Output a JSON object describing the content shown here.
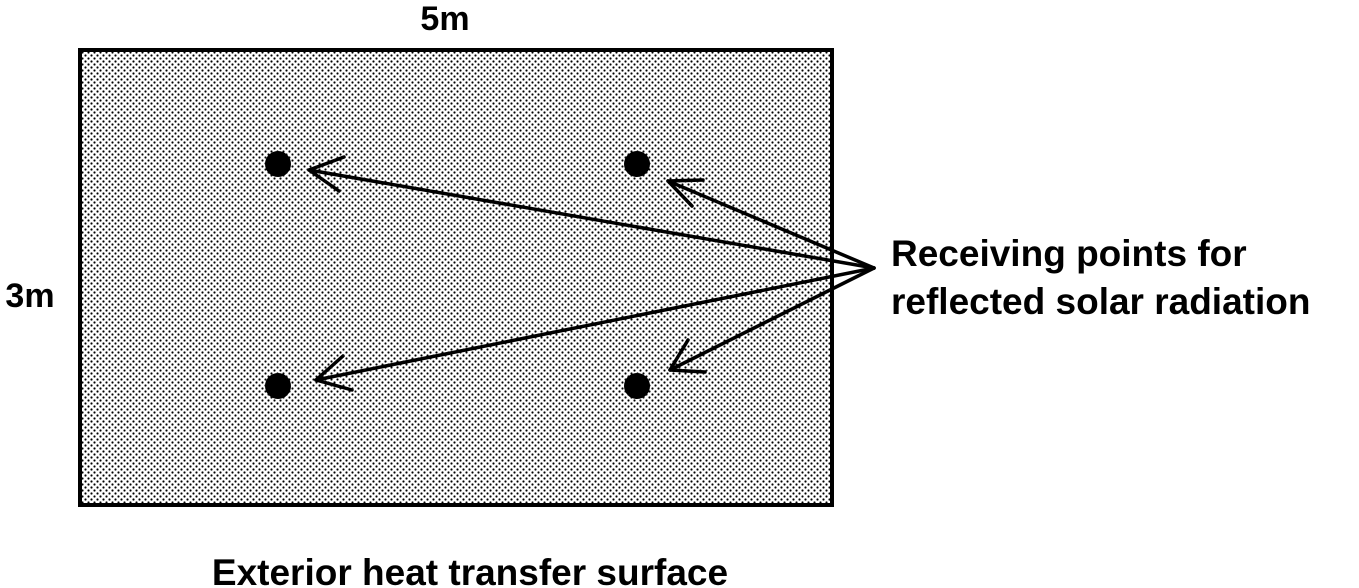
{
  "labels": {
    "width": "5m",
    "height": "3m",
    "receiving_points_line1": "Receiving points for",
    "receiving_points_line2": "reflected solar radiation",
    "surface": "Exterior heat transfer surface"
  },
  "colors": {
    "ink": "#000000",
    "background": "#ffffff"
  }
}
